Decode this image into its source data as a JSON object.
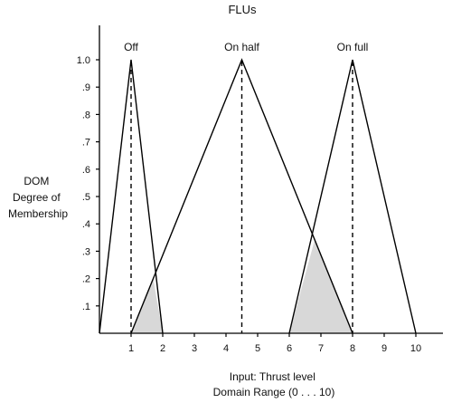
{
  "chart_data": {
    "type": "line",
    "title": "FLUs",
    "ylabel_lines": [
      "DOM",
      "Degree of",
      "Membership"
    ],
    "xlabel_lines": [
      "Input: Thrust level",
      "Domain Range (0 . . . 10)"
    ],
    "xlim": [
      0,
      11
    ],
    "ylim": [
      0,
      1.0
    ],
    "x_ticks": [
      1,
      2,
      3,
      4,
      5,
      6,
      7,
      8,
      9,
      10
    ],
    "x_tick_labels": [
      "1",
      "2",
      "3",
      "4",
      "5",
      "6",
      "7",
      "8",
      "9",
      "10"
    ],
    "y_ticks": [
      0.1,
      0.2,
      0.3,
      0.4,
      0.5,
      0.6,
      0.7,
      0.8,
      0.9,
      1.0
    ],
    "y_tick_labels": [
      ".1",
      ".2",
      ".3",
      ".4",
      ".5",
      ".6",
      ".7",
      ".8",
      ".9",
      "1.0"
    ],
    "series": [
      {
        "name": "Off",
        "points": [
          [
            0,
            0
          ],
          [
            1,
            1
          ],
          [
            2,
            0
          ]
        ],
        "peak": 1
      },
      {
        "name": "On half",
        "points": [
          [
            1,
            0
          ],
          [
            4.5,
            1
          ],
          [
            8,
            0
          ]
        ],
        "peak": 4.5
      },
      {
        "name": "On full",
        "points": [
          [
            6,
            0
          ],
          [
            8,
            1
          ],
          [
            10,
            0
          ]
        ],
        "peak": 8
      }
    ],
    "shaded_regions": [
      {
        "points": [
          [
            1,
            0
          ],
          [
            2,
            0
          ],
          [
            1.7,
            0.2
          ]
        ]
      },
      {
        "points": [
          [
            6,
            0
          ],
          [
            8,
            0
          ],
          [
            6.8,
            0.34
          ]
        ]
      }
    ],
    "shade_color": "#d8d8d8",
    "line_color": "#000000"
  }
}
